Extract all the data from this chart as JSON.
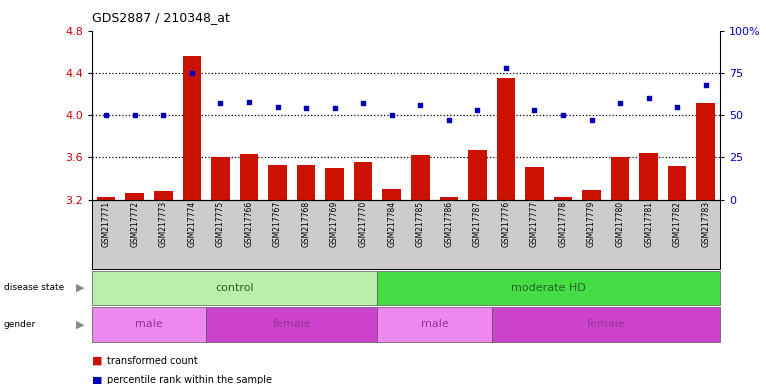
{
  "title": "GDS2887 / 210348_at",
  "samples": [
    "GSM217771",
    "GSM217772",
    "GSM217773",
    "GSM217774",
    "GSM217775",
    "GSM217766",
    "GSM217767",
    "GSM217768",
    "GSM217769",
    "GSM217770",
    "GSM217784",
    "GSM217785",
    "GSM217786",
    "GSM217787",
    "GSM217776",
    "GSM217777",
    "GSM217778",
    "GSM217779",
    "GSM217780",
    "GSM217781",
    "GSM217782",
    "GSM217783"
  ],
  "bar_values": [
    3.23,
    3.26,
    3.28,
    4.56,
    3.6,
    3.63,
    3.53,
    3.53,
    3.5,
    3.56,
    3.3,
    3.62,
    3.23,
    3.67,
    4.35,
    3.51,
    3.23,
    3.29,
    3.6,
    3.64,
    3.52,
    4.12
  ],
  "dot_values": [
    50,
    50,
    50,
    75,
    57,
    58,
    55,
    54,
    54,
    57,
    50,
    56,
    47,
    53,
    78,
    53,
    50,
    47,
    57,
    60,
    55,
    68
  ],
  "ylim_left": [
    3.2,
    4.8
  ],
  "ylim_right": [
    0,
    100
  ],
  "yticks_left": [
    3.2,
    3.6,
    4.0,
    4.4,
    4.8
  ],
  "yticks_right": [
    0,
    25,
    50,
    75,
    100
  ],
  "ytick_labels_right": [
    "0",
    "25",
    "50",
    "75",
    "100%"
  ],
  "bar_color": "#cc1100",
  "dot_color": "#0000bb",
  "grid_yticks": [
    3.6,
    4.0,
    4.4
  ],
  "left_tick_color": "#cc0000",
  "right_tick_color": "#0000bb",
  "disease_groups": [
    {
      "label": "control",
      "start": 0,
      "end": 9,
      "color": "#bbeeaa"
    },
    {
      "label": "moderate HD",
      "start": 10,
      "end": 21,
      "color": "#44dd44"
    }
  ],
  "disease_text_color": "#226622",
  "gender_groups": [
    {
      "label": "male",
      "start": 0,
      "end": 3,
      "color": "#ee88ee"
    },
    {
      "label": "female",
      "start": 4,
      "end": 9,
      "color": "#cc44cc"
    },
    {
      "label": "male",
      "start": 10,
      "end": 13,
      "color": "#ee88ee"
    },
    {
      "label": "female",
      "start": 14,
      "end": 21,
      "color": "#cc44cc"
    }
  ],
  "gender_text_color": "#993399",
  "xtick_bg_color": "#cccccc"
}
